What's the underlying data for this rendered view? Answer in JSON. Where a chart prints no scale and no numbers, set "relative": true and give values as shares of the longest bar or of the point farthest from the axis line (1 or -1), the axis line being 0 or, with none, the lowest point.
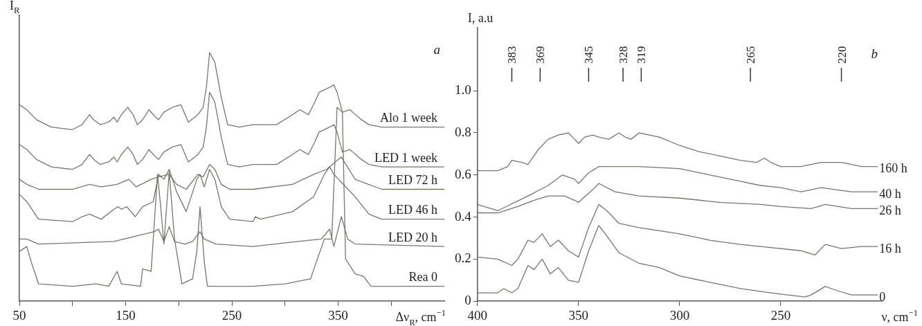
{
  "chart_data": [
    {
      "type": "line",
      "title": "a",
      "xlabel": "Δν$_{R}$, cm$^{−1}$",
      "ylabel": "I$_{R}$",
      "relative": true,
      "xlim": [
        50,
        450
      ],
      "xticks": [
        50,
        {
          "value": 100,
          "label": null
        },
        150,
        {
          "value": 200,
          "label": null
        },
        250,
        {
          "value": 300,
          "label": null
        },
        350,
        {
          "value": 400,
          "label": null
        }
      ],
      "series": [
        {
          "name": "Alo 1 week",
          "color": "#76766a",
          "x": [
            50,
            57,
            66,
            80,
            100,
            109,
            116,
            120,
            126,
            134,
            139,
            142,
            146,
            152,
            157,
            161,
            166,
            172,
            176,
            181,
            186,
            194,
            202,
            209,
            218,
            223,
            226,
            229,
            234,
            240,
            246,
            257,
            270,
            277,
            292,
            307,
            314,
            322,
            328,
            332,
            342,
            346,
            349,
            354,
            361,
            372,
            379,
            391,
            450
          ],
          "values": [
            0.79,
            0.77,
            0.73,
            0.7,
            0.69,
            0.71,
            0.75,
            0.73,
            0.71,
            0.72,
            0.74,
            0.72,
            0.75,
            0.78,
            0.75,
            0.71,
            0.73,
            0.77,
            0.75,
            0.73,
            0.76,
            0.78,
            0.79,
            0.72,
            0.75,
            0.78,
            0.86,
            1.0,
            0.96,
            0.82,
            0.71,
            0.7,
            0.71,
            0.71,
            0.71,
            0.75,
            0.77,
            0.75,
            0.8,
            0.84,
            0.86,
            0.87,
            0.84,
            0.76,
            0.77,
            0.73,
            0.71,
            0.7,
            0.7
          ]
        },
        {
          "name": "LED 1 week",
          "color": "#76766a",
          "x": [
            50,
            57,
            66,
            80,
            100,
            109,
            116,
            120,
            126,
            134,
            139,
            142,
            146,
            152,
            157,
            161,
            166,
            172,
            176,
            181,
            186,
            194,
            202,
            209,
            218,
            223,
            226,
            229,
            234,
            240,
            246,
            257,
            270,
            277,
            292,
            307,
            314,
            322,
            328,
            332,
            342,
            346,
            349,
            354,
            361,
            372,
            379,
            391,
            450
          ],
          "values": [
            0.63,
            0.61,
            0.57,
            0.54,
            0.53,
            0.55,
            0.59,
            0.57,
            0.55,
            0.56,
            0.58,
            0.56,
            0.59,
            0.62,
            0.59,
            0.55,
            0.57,
            0.61,
            0.59,
            0.57,
            0.6,
            0.62,
            0.63,
            0.56,
            0.59,
            0.62,
            0.7,
            0.84,
            0.8,
            0.66,
            0.55,
            0.54,
            0.55,
            0.55,
            0.55,
            0.59,
            0.61,
            0.59,
            0.64,
            0.68,
            0.7,
            0.71,
            0.68,
            0.6,
            0.61,
            0.57,
            0.55,
            0.54,
            0.54
          ]
        },
        {
          "name": "LED 72 h",
          "color": "#76766a",
          "x": [
            50,
            57,
            68,
            100,
            116,
            127,
            142,
            153,
            160,
            174,
            181,
            191,
            198,
            207,
            218,
            223,
            229,
            234,
            240,
            248,
            270,
            307,
            327,
            339,
            353,
            366,
            391,
            450
          ],
          "values": [
            0.49,
            0.47,
            0.45,
            0.45,
            0.47,
            0.46,
            0.47,
            0.49,
            0.46,
            0.49,
            0.5,
            0.51,
            0.47,
            0.45,
            0.51,
            0.5,
            0.55,
            0.53,
            0.47,
            0.45,
            0.45,
            0.47,
            0.51,
            0.53,
            0.58,
            0.49,
            0.45,
            0.45
          ]
        },
        {
          "name": "LED 46 h",
          "color": "#76766a",
          "x": [
            50,
            57,
            68,
            100,
            109,
            116,
            127,
            139,
            143,
            146,
            151,
            159,
            166,
            176,
            181,
            186,
            191,
            198,
            207,
            217,
            220,
            224,
            229,
            234,
            240,
            248,
            270,
            272,
            277,
            307,
            327,
            337,
            342,
            346,
            366,
            379,
            391,
            450
          ],
          "values": [
            0.43,
            0.4,
            0.33,
            0.32,
            0.34,
            0.35,
            0.33,
            0.37,
            0.38,
            0.37,
            0.38,
            0.34,
            0.38,
            0.4,
            0.51,
            0.49,
            0.53,
            0.44,
            0.36,
            0.49,
            0.51,
            0.46,
            0.53,
            0.49,
            0.38,
            0.33,
            0.32,
            0.34,
            0.33,
            0.36,
            0.42,
            0.51,
            0.54,
            0.51,
            0.42,
            0.35,
            0.33,
            0.33
          ]
        },
        {
          "name": "LED 20 h",
          "color": "#76766a",
          "x": [
            50,
            57,
            68,
            139,
            177,
            181,
            186,
            191,
            196,
            206,
            213,
            220,
            224,
            235,
            270,
            312,
            334,
            342,
            346,
            353,
            359,
            366,
            450
          ],
          "values": [
            0.25,
            0.25,
            0.23,
            0.24,
            0.28,
            0.29,
            0.24,
            0.3,
            0.24,
            0.23,
            0.24,
            0.28,
            0.25,
            0.23,
            0.22,
            0.24,
            0.25,
            0.29,
            0.22,
            0.34,
            0.25,
            0.23,
            0.22
          ]
        },
        {
          "name": "Rea 0",
          "color": "#76766a",
          "x": [
            50,
            57,
            61,
            68,
            100,
            122,
            134,
            142,
            146,
            164,
            166,
            174,
            176,
            180,
            183,
            186,
            191,
            196,
            203,
            213,
            217,
            220,
            224,
            227,
            270,
            300,
            324,
            337,
            344,
            349,
            354,
            357,
            366,
            374,
            381,
            450
          ],
          "values": [
            0.2,
            0.22,
            0.16,
            0.07,
            0.06,
            0.07,
            0.06,
            0.12,
            0.07,
            0.06,
            0.13,
            0.12,
            0.25,
            0.51,
            0.38,
            0.23,
            0.52,
            0.25,
            0.07,
            0.09,
            0.2,
            0.38,
            0.16,
            0.06,
            0.06,
            0.07,
            0.09,
            0.25,
            0.25,
            0.78,
            0.76,
            0.17,
            0.11,
            0.1,
            0.06,
            0.06
          ]
        }
      ]
    },
    {
      "type": "line",
      "title": "b",
      "xlabel": "ν, cm$^{−1}$",
      "ylabel": "I, a.u",
      "xlim": [
        400,
        200
      ],
      "xticks": [
        400,
        350,
        300,
        250
      ],
      "ylim": [
        0,
        1.3
      ],
      "yticks": [
        0,
        0.2,
        0.4,
        0.6,
        0.8,
        {
          "value": 1,
          "label": "1.0"
        }
      ],
      "ref_lines": [
        {
          "axis": "x",
          "value": 383,
          "label": "383"
        },
        {
          "axis": "x",
          "value": 369,
          "label": "369"
        },
        {
          "axis": "x",
          "value": 345,
          "label": "345"
        },
        {
          "axis": "x",
          "value": 328,
          "label": "328"
        },
        {
          "axis": "x",
          "value": 319,
          "label": "319"
        },
        {
          "axis": "x",
          "value": 265,
          "label": "265"
        },
        {
          "axis": "x",
          "value": 220,
          "label": "220"
        }
      ],
      "series": [
        {
          "name": "160 h",
          "color": "#76766a",
          "x": [
            400,
            390,
            385,
            383,
            378,
            375,
            370,
            365,
            360,
            355,
            352,
            350,
            347,
            343,
            340,
            335,
            330,
            327,
            324,
            320,
            315,
            310,
            300,
            290,
            280,
            270,
            262,
            258,
            255,
            250,
            240,
            230,
            220,
            210,
            202
          ],
          "values": [
            0.62,
            0.62,
            0.64,
            0.67,
            0.66,
            0.65,
            0.72,
            0.77,
            0.79,
            0.8,
            0.77,
            0.75,
            0.78,
            0.79,
            0.78,
            0.77,
            0.8,
            0.78,
            0.77,
            0.8,
            0.79,
            0.78,
            0.74,
            0.71,
            0.69,
            0.67,
            0.66,
            0.68,
            0.66,
            0.64,
            0.64,
            0.66,
            0.66,
            0.64,
            0.64
          ]
        },
        {
          "name": "40 h",
          "color": "#76766a",
          "x": [
            400,
            390,
            375,
            365,
            358,
            352,
            350,
            345,
            340,
            320,
            300,
            285,
            270,
            260,
            250,
            240,
            230,
            215,
            202
          ],
          "values": [
            0.46,
            0.43,
            0.5,
            0.55,
            0.6,
            0.58,
            0.56,
            0.61,
            0.64,
            0.64,
            0.63,
            0.6,
            0.57,
            0.55,
            0.54,
            0.52,
            0.54,
            0.52,
            0.52
          ]
        },
        {
          "name": "26 h",
          "color": "#76766a",
          "x": [
            400,
            390,
            380,
            372,
            365,
            357,
            352,
            350,
            343,
            340,
            332,
            320,
            300,
            280,
            260,
            250,
            235,
            228,
            215,
            202
          ],
          "values": [
            0.42,
            0.42,
            0.45,
            0.48,
            0.5,
            0.5,
            0.48,
            0.47,
            0.53,
            0.56,
            0.52,
            0.5,
            0.49,
            0.47,
            0.46,
            0.45,
            0.44,
            0.46,
            0.44,
            0.44
          ]
        },
        {
          "name": "16 h",
          "color": "#76766a",
          "x": [
            400,
            390,
            383,
            380,
            375,
            372,
            368,
            364,
            360,
            355,
            350,
            345,
            340,
            336,
            330,
            320,
            300,
            285,
            270,
            260,
            240,
            233,
            228,
            220,
            210,
            202
          ],
          "values": [
            0.21,
            0.2,
            0.17,
            0.2,
            0.29,
            0.28,
            0.32,
            0.26,
            0.29,
            0.24,
            0.21,
            0.35,
            0.46,
            0.43,
            0.37,
            0.35,
            0.32,
            0.29,
            0.27,
            0.26,
            0.24,
            0.22,
            0.27,
            0.25,
            0.26,
            0.26
          ]
        },
        {
          "name": "0",
          "color": "#76766a",
          "x": [
            400,
            390,
            387,
            383,
            380,
            375,
            372,
            368,
            364,
            360,
            355,
            350,
            345,
            340,
            336,
            330,
            320,
            310,
            300,
            285,
            270,
            255,
            238,
            235,
            228,
            222,
            215,
            202
          ],
          "values": [
            0.04,
            0.04,
            0.06,
            0.04,
            0.06,
            0.17,
            0.15,
            0.2,
            0.13,
            0.16,
            0.1,
            0.09,
            0.24,
            0.36,
            0.31,
            0.23,
            0.18,
            0.16,
            0.12,
            0.09,
            0.06,
            0.04,
            0.02,
            0.03,
            0.07,
            0.05,
            0.03,
            0.03
          ]
        }
      ]
    }
  ]
}
